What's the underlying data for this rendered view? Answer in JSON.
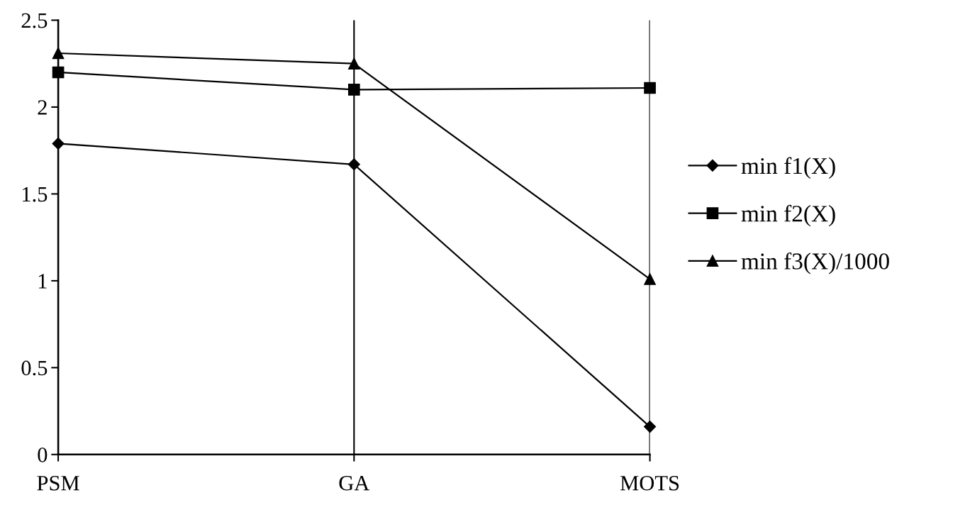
{
  "chart_data": {
    "type": "line",
    "categories": [
      "PSM",
      "GA",
      "MOTS"
    ],
    "series": [
      {
        "name": "min f1(X)",
        "color": "#000000",
        "marker": "diamond",
        "values": [
          1.79,
          1.67,
          0.16
        ]
      },
      {
        "name": "min f2(X)",
        "color": "#000000",
        "marker": "square",
        "values": [
          2.2,
          2.1,
          2.11
        ]
      },
      {
        "name": "min f3(X)/1000",
        "color": "#000000",
        "marker": "triangle",
        "values": [
          2.31,
          2.25,
          1.01
        ]
      }
    ],
    "ylim": [
      0,
      2.5
    ],
    "yticks": [
      0,
      0.5,
      1,
      1.5,
      2,
      2.5
    ],
    "grid": "x",
    "legend": "right",
    "line_style": "solid"
  }
}
